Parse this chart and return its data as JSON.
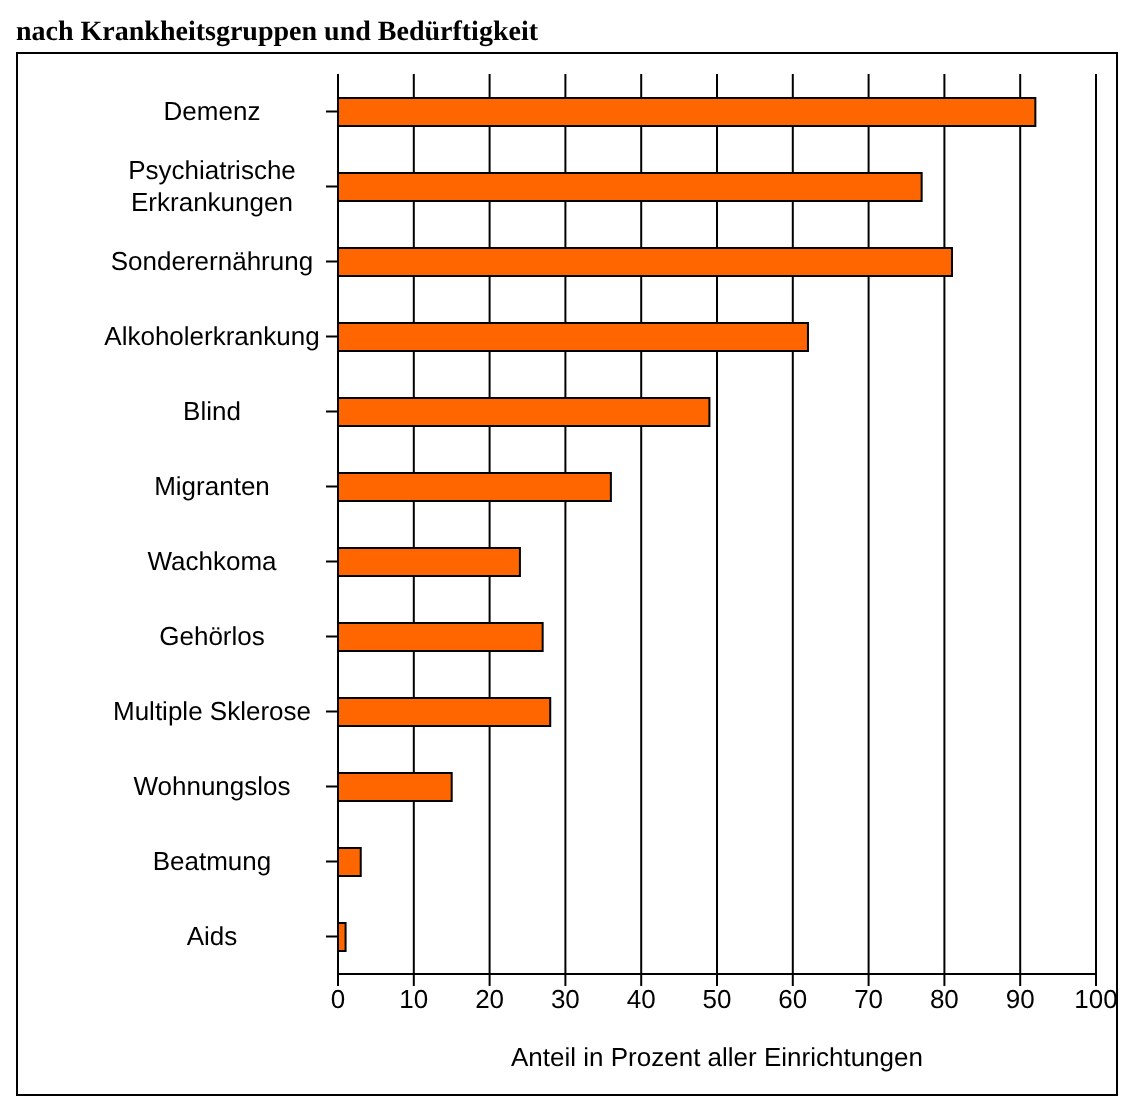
{
  "chart_data": {
    "type": "bar",
    "orientation": "horizontal",
    "title": "nach Krankheitsgruppen und Bedürftigkeit",
    "xlabel": "Anteil in Prozent aller Einrichtungen",
    "categories": [
      "Demenz",
      "Psychiatrische Erkrankungen",
      "Sonderernährung",
      "Alkoholerkrankung",
      "Blind",
      "Migranten",
      "Wachkoma",
      "Gehörlos",
      "Multiple Sklerose",
      "Wohnungslos",
      "Beatmung",
      "Aids"
    ],
    "values": [
      92,
      77,
      81,
      62,
      49,
      36,
      24,
      27,
      28,
      15,
      3,
      1
    ],
    "color": "#ff6600",
    "xlim": [
      0,
      100
    ],
    "xticks": [
      0,
      10,
      20,
      30,
      40,
      50,
      60,
      70,
      80,
      90,
      100
    ],
    "grid": "x",
    "legend": false
  }
}
